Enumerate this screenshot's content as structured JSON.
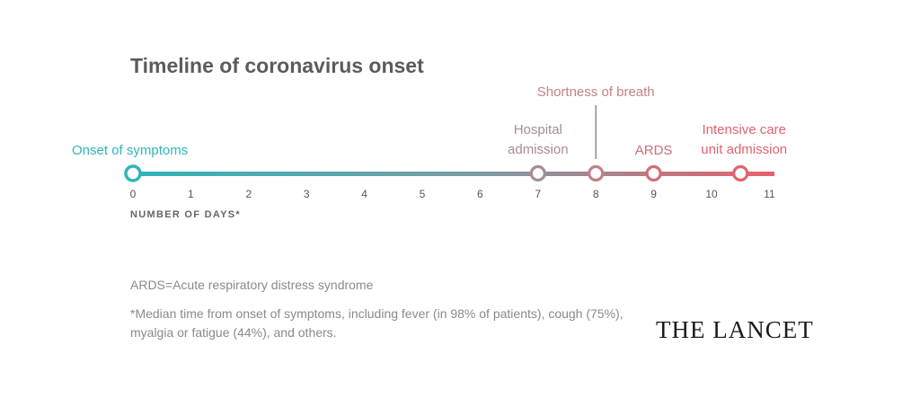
{
  "title": "Timeline of coronavirus onset",
  "axis": {
    "label": "NUMBER OF DAYS*",
    "ticks": [
      "0",
      "1",
      "2",
      "3",
      "4",
      "5",
      "6",
      "7",
      "8",
      "9",
      "10",
      "11"
    ]
  },
  "events": [
    {
      "day": 0,
      "label": [
        "Onset of symptoms"
      ],
      "color": "#2fb5b9"
    },
    {
      "day": 7,
      "label": [
        "Hospital",
        "admission"
      ],
      "color": "#a98b96"
    },
    {
      "day": 8,
      "label": [
        "Shortness of breath"
      ],
      "color": "#c48088"
    },
    {
      "day": 9,
      "label": [
        "ARDS"
      ],
      "color": "#cf6f78"
    },
    {
      "day": 10.5,
      "label": [
        "Intensive care",
        "unit admission"
      ],
      "color": "#e2626c"
    }
  ],
  "colors": {
    "start": "#2fb5b9",
    "mid": "#7d9ba4",
    "end": "#e8606a",
    "tick": "#555555"
  },
  "notes": {
    "ards": "ARDS=Acute respiratory distress syndrome",
    "median": "*Median time from onset of symptoms, including fever (in 98% of patients), cough (75%), myalgia or fatigue (44%), and others."
  },
  "logo": "THE LANCET"
}
